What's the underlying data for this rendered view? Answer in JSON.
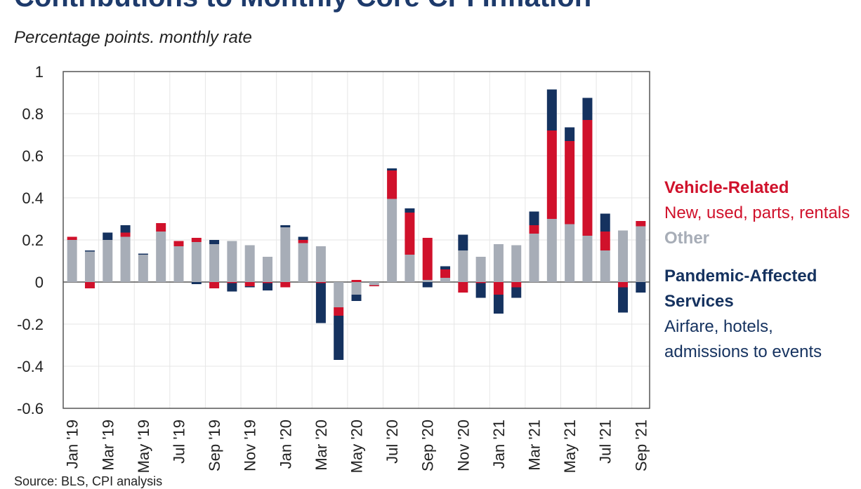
{
  "header": {
    "title": "Contributions to Monthly Core CPI Inflation",
    "subtitle": "Percentage points. monthly rate"
  },
  "legend": {
    "vehicle": {
      "title": "Vehicle-Related",
      "desc": "New, used, parts, rentals",
      "color": "#d0112b"
    },
    "other": {
      "title": "Other",
      "color": "#a7adb7"
    },
    "pandemic": {
      "title": "Pandemic-Affected Services",
      "desc": "Airfare, hotels, admissions to events",
      "color": "#15325f"
    }
  },
  "footer": {
    "source": "Source: BLS, CPI analysis"
  },
  "chart_data": {
    "type": "bar",
    "stacked": true,
    "title": "Contributions to Monthly Core CPI Inflation",
    "subtitle": "Percentage points. monthly rate",
    "ylim": [
      -0.6,
      1
    ],
    "yticks": [
      -0.6,
      -0.4,
      -0.2,
      0,
      0.2,
      0.4,
      0.6,
      0.8,
      1
    ],
    "ytick_labels": [
      "-0.6",
      "-0.4",
      "-0.2",
      "0",
      "0.2",
      "0.4",
      "0.6",
      "0.8",
      "1"
    ],
    "grid": true,
    "legend_position": "right",
    "categories": [
      "Jan '19",
      "Feb '19",
      "Mar '19",
      "Apr '19",
      "May '19",
      "Jun '19",
      "Jul '19",
      "Aug '19",
      "Sep '19",
      "Oct '19",
      "Nov '19",
      "Dec '19",
      "Jan '20",
      "Feb '20",
      "Mar '20",
      "Apr '20",
      "May '20",
      "Jun '20",
      "Jul '20",
      "Aug '20",
      "Sep '20",
      "Oct '20",
      "Nov '20",
      "Dec '20",
      "Jan '21",
      "Feb '21",
      "Mar '21",
      "Apr '21",
      "May '21",
      "Jun '21",
      "Jul '21",
      "Aug '21",
      "Sep '21"
    ],
    "xtick_labels": [
      "Jan '19",
      "",
      "Mar '19",
      "",
      "May '19",
      "",
      "Jul '19",
      "",
      "Sep '19",
      "",
      "Nov '19",
      "",
      "Jan '20",
      "",
      "Mar '20",
      "",
      "May '20",
      "",
      "Jul '20",
      "",
      "Sep '20",
      "",
      "Nov '20",
      "",
      "Jan '21",
      "",
      "Mar '21",
      "",
      "May '21",
      "",
      "Jul '21",
      "",
      "Sep '21"
    ],
    "series": [
      {
        "name": "Other",
        "color": "#a7adb7",
        "values": [
          0.2,
          0.145,
          0.2,
          0.215,
          0.13,
          0.24,
          0.17,
          0.19,
          0.18,
          0.195,
          0.175,
          0.12,
          0.26,
          0.185,
          0.17,
          -0.12,
          -0.06,
          -0.015,
          0.395,
          0.13,
          0.01,
          0.02,
          0.15,
          0.12,
          0.18,
          0.175,
          0.23,
          0.3,
          0.275,
          0.22,
          0.15,
          0.245,
          0.265
        ]
      },
      {
        "name": "Vehicle-Related",
        "color": "#d0112b",
        "values": [
          0.015,
          -0.03,
          0,
          0.02,
          0,
          0.04,
          0.025,
          0.02,
          -0.03,
          -0.005,
          -0.02,
          -0.005,
          -0.025,
          0.015,
          -0.005,
          -0.04,
          0.01,
          -0.005,
          0.135,
          0.2,
          0.2,
          0.04,
          -0.05,
          -0.005,
          -0.06,
          -0.025,
          0.04,
          0.42,
          0.395,
          0.55,
          0.09,
          -0.025,
          0.025
        ]
      },
      {
        "name": "Pandemic-Affected Services",
        "color": "#15325f",
        "values": [
          0,
          0.005,
          0.035,
          0.035,
          0.005,
          0,
          0,
          -0.01,
          0.02,
          -0.04,
          -0.005,
          -0.035,
          0.01,
          0.015,
          -0.19,
          -0.21,
          -0.03,
          0,
          0.01,
          0.02,
          -0.025,
          0.015,
          0.075,
          -0.07,
          -0.09,
          -0.05,
          0.065,
          0.195,
          0.065,
          0.105,
          0.085,
          -0.12,
          -0.05
        ]
      }
    ]
  }
}
